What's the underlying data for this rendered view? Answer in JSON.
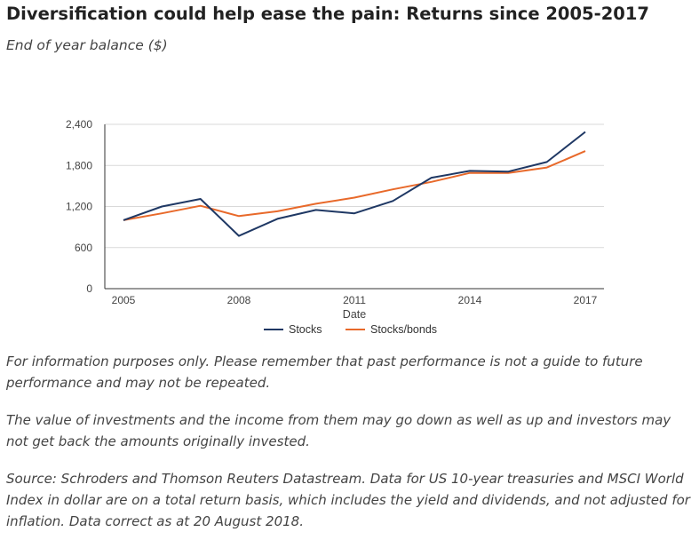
{
  "header": {
    "title": "Diversification could help ease the pain: Returns since 2005-2017",
    "subtitle": "End of year balance ($)"
  },
  "chart_data": {
    "type": "line",
    "x": [
      2005,
      2006,
      2007,
      2008,
      2009,
      2010,
      2011,
      2012,
      2013,
      2014,
      2015,
      2016,
      2017
    ],
    "xticks": [
      "2005",
      "2008",
      "2011",
      "2014",
      "2017"
    ],
    "xlabel": "Date",
    "ylabel": "",
    "ylim": [
      0,
      2400
    ],
    "yticks": [
      "0",
      "600",
      "1,200",
      "1,800",
      "2,400"
    ],
    "grid": true,
    "legend": "bottom",
    "series": [
      {
        "name": "Stocks",
        "color": "#1f3864",
        "values": [
          1000,
          1200,
          1310,
          770,
          1020,
          1150,
          1100,
          1280,
          1620,
          1720,
          1710,
          1850,
          2290
        ]
      },
      {
        "name": "Stocks/bonds",
        "color": "#e8692a",
        "values": [
          1000,
          1100,
          1210,
          1060,
          1130,
          1240,
          1330,
          1450,
          1560,
          1690,
          1690,
          1770,
          2010
        ]
      }
    ]
  },
  "notes": [
    "For information purposes only. Please remember that past performance is not a guide to future performance and may not be repeated.",
    "The value of investments and the income from them may go down as well as up and investors may not get back the amounts originally invested.",
    "Source: Schroders and Thomson Reuters Datastream. Data for US 10-year treasuries and MSCI World Index in dollar are on a total return basis, which includes the yield and dividends, and not adjusted for inflation. Data correct as at 20 August 2018."
  ]
}
